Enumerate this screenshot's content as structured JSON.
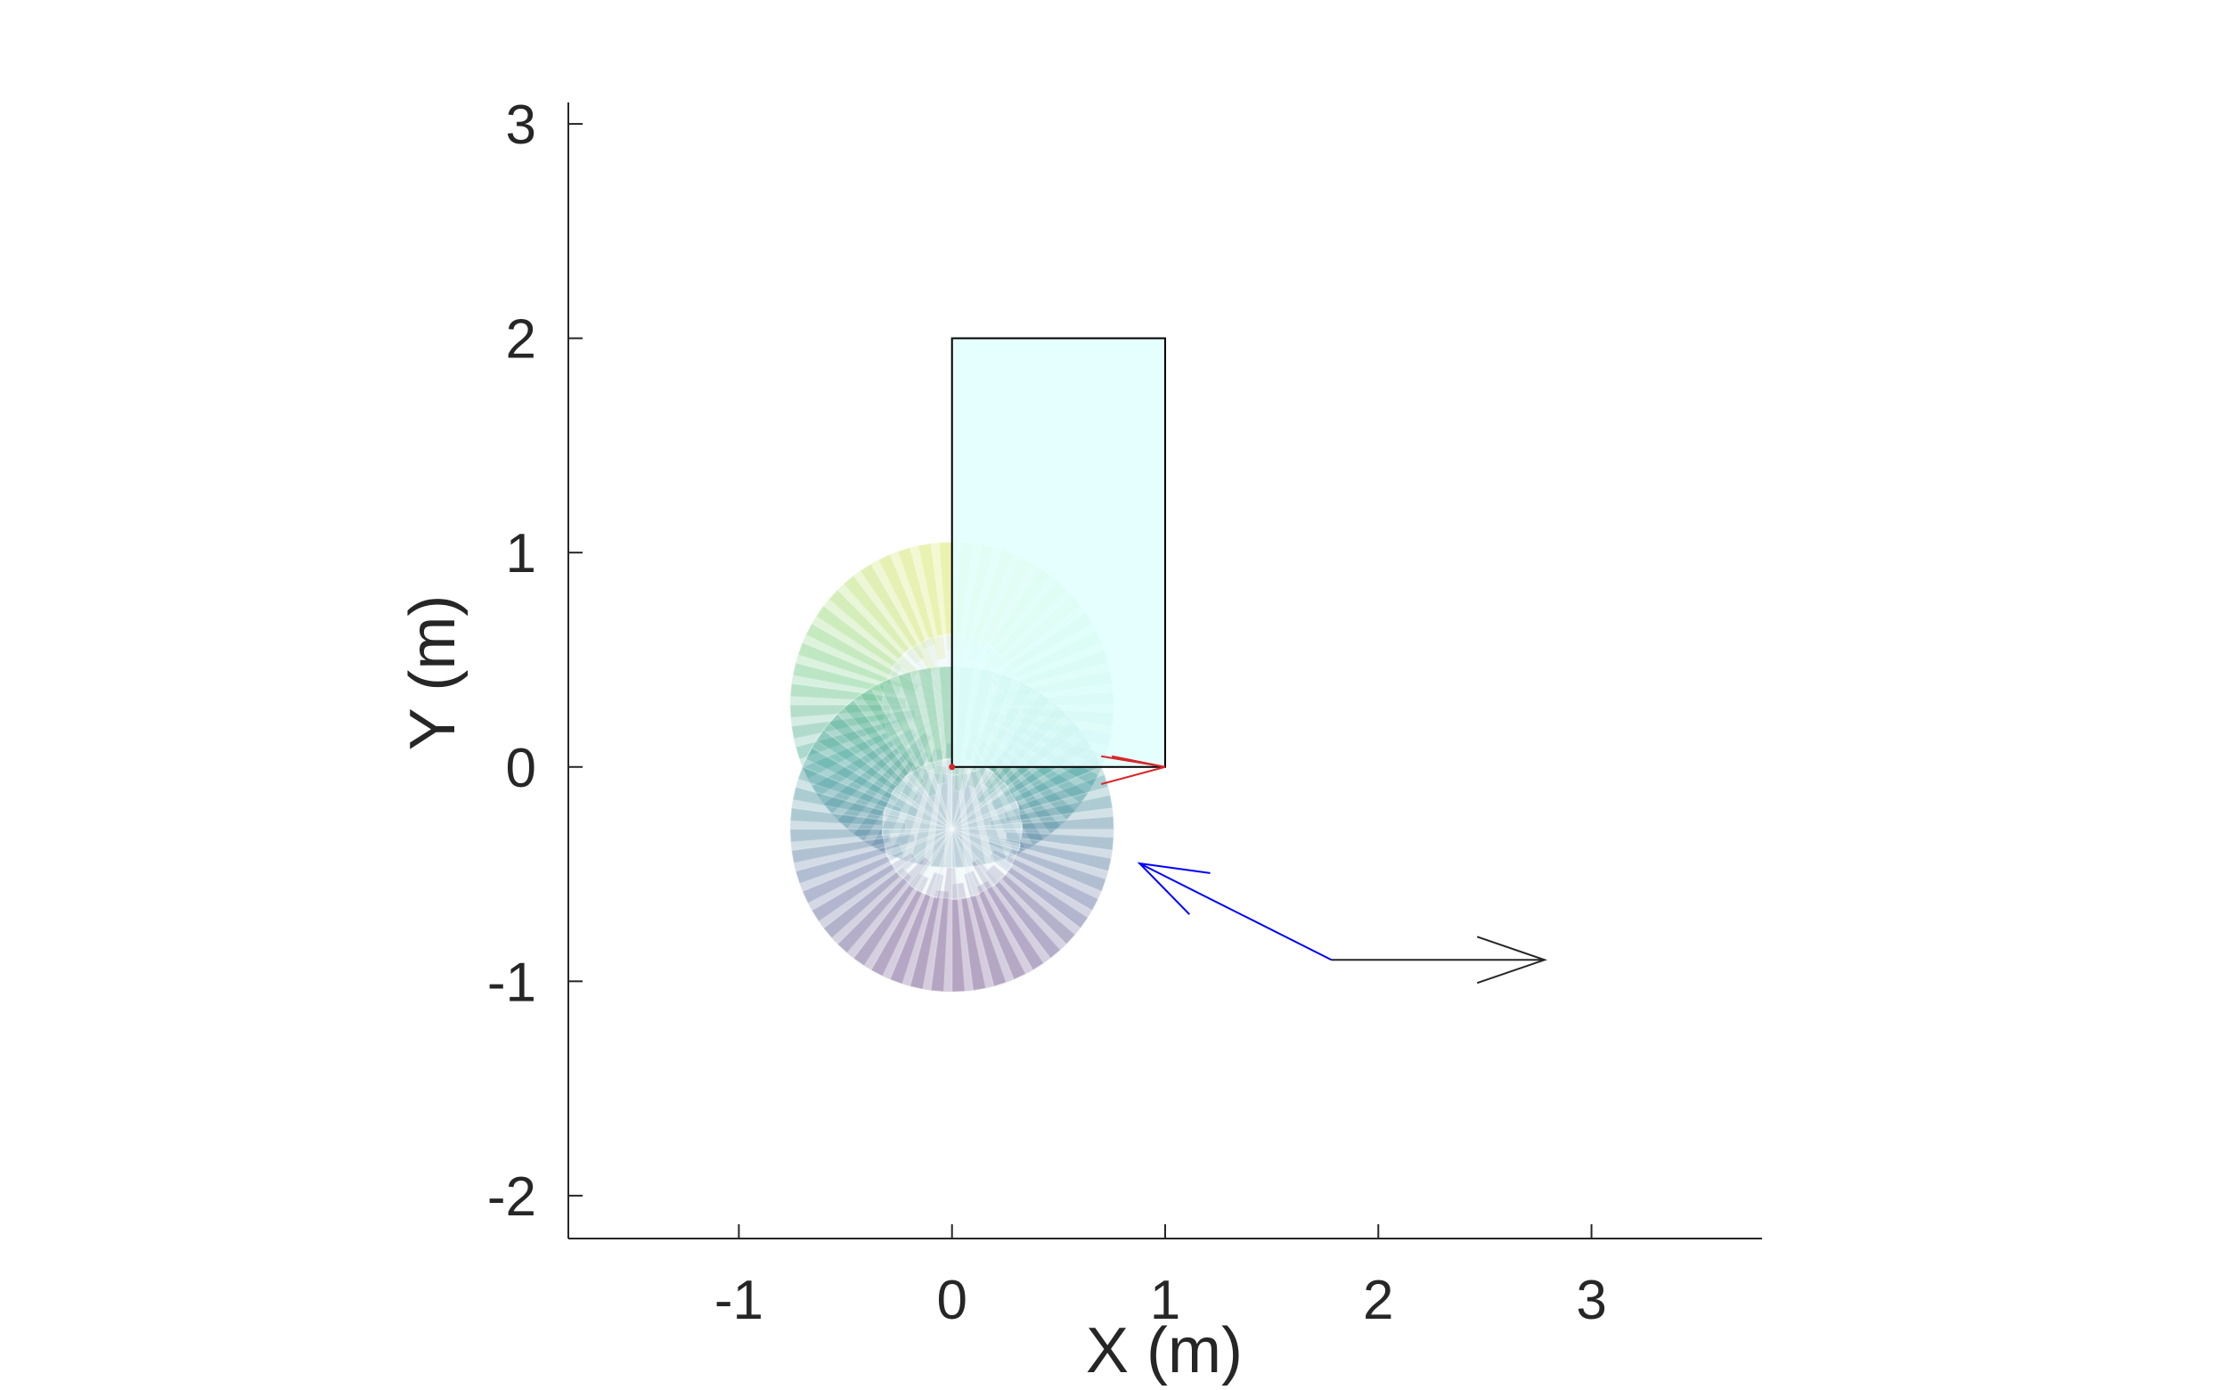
{
  "chart_data": {
    "type": "scatter",
    "title": "",
    "xlabel": "X (m)",
    "ylabel": "Y (m)",
    "xlim": [
      -1.8,
      3.8
    ],
    "ylim": [
      -2.2,
      3.1
    ],
    "xticks": [
      -1,
      0,
      1,
      2,
      3
    ],
    "yticks": [
      -2,
      -1,
      0,
      1,
      2,
      3
    ],
    "xtick_labels": [
      "-1",
      "0",
      "1",
      "2",
      "3"
    ],
    "ytick_labels": [
      "-2",
      "-1",
      "0",
      "1",
      "2",
      "3"
    ],
    "grid": false,
    "legend": "none",
    "rectangle": {
      "x": [
        0,
        1
      ],
      "y": [
        0,
        2
      ],
      "fill": "#e0ffff",
      "stroke": "#000000"
    },
    "reachable_region": {
      "lobes": [
        {
          "center": [
            0,
            0.29
          ],
          "outer_radius": 0.76,
          "inner_radius": 0.33
        },
        {
          "center": [
            0,
            -0.29
          ],
          "outer_radius": 0.76,
          "inner_radius": 0.33
        }
      ],
      "colormap": [
        "#440154",
        "#3b528b",
        "#21918c",
        "#5ec962",
        "#fde725"
      ],
      "opacity": 0.55
    },
    "red_lines": [
      {
        "x": [
          0.7,
          1.0
        ],
        "y": [
          0.05,
          0.0
        ]
      },
      {
        "x": [
          0.7,
          1.0
        ],
        "y": [
          -0.08,
          0.0
        ]
      },
      {
        "x": [
          0.75,
          1.0
        ],
        "y": [
          0.05,
          0.0
        ]
      }
    ],
    "red_point": {
      "x": 0,
      "y": 0
    },
    "arrows": [
      {
        "name": "blue-arrow",
        "from": [
          1.78,
          -0.9
        ],
        "to": [
          0.88,
          -0.45
        ],
        "color": "#0000ff"
      },
      {
        "name": "black-arrow",
        "from": [
          1.78,
          -0.9
        ],
        "to": [
          2.78,
          -0.9
        ],
        "color": "#262626"
      }
    ],
    "colors": {
      "axis": "#262626",
      "rectangle_fill": "#e0ffff",
      "red": "#d62728",
      "blue": "#0000ff"
    }
  }
}
